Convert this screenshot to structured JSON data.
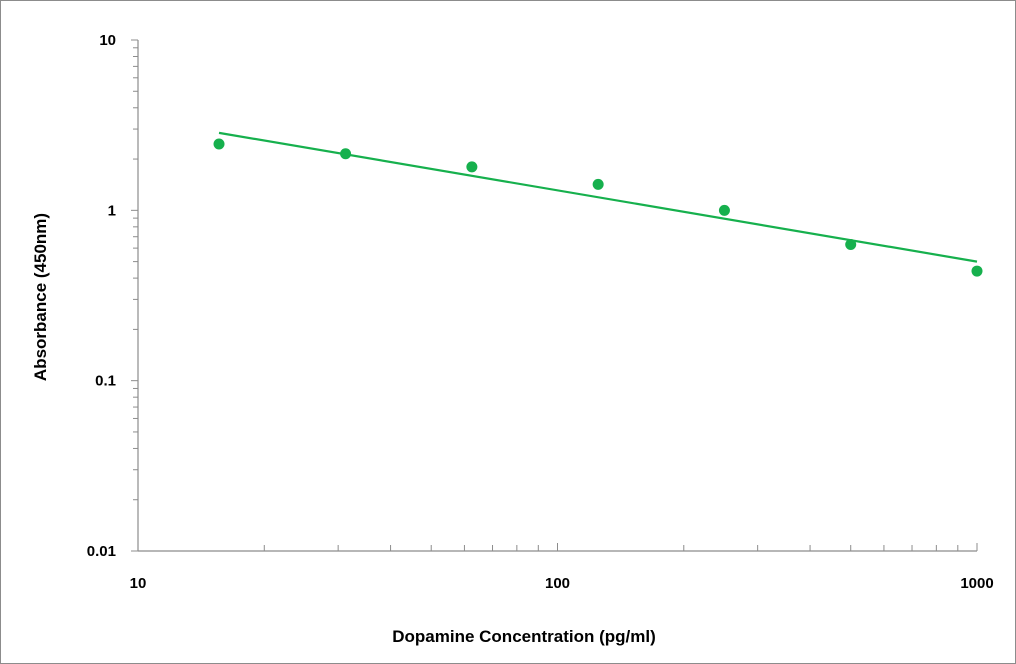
{
  "chart_data": {
    "type": "scatter",
    "title": "",
    "xlabel": "Dopamine Concentration (pg/ml)",
    "ylabel": "Absorbance (450nm)",
    "x_scale": "log",
    "y_scale": "log",
    "xlim": [
      10,
      1000
    ],
    "ylim": [
      0.01,
      10
    ],
    "x_ticks": [
      10,
      100,
      1000
    ],
    "x_tick_labels": [
      "10",
      "100",
      "1000"
    ],
    "y_ticks": [
      0.01,
      0.1,
      1,
      10
    ],
    "y_tick_labels": [
      "0.01",
      "0.1",
      "1",
      "10"
    ],
    "grid": false,
    "legend": "none",
    "series": [
      {
        "x": [
          15.6,
          31.25,
          62.5,
          125,
          250,
          500,
          1000
        ],
        "y": [
          2.45,
          2.15,
          1.8,
          1.42,
          1.0,
          0.63,
          0.44
        ]
      }
    ],
    "trendline": {
      "type": "power",
      "x": [
        15.6,
        1000
      ],
      "y": [
        2.85,
        0.5
      ]
    },
    "colors": {
      "marker": "#16b04d",
      "trendline": "#16b04d",
      "axis": "#8c8c8c"
    }
  }
}
